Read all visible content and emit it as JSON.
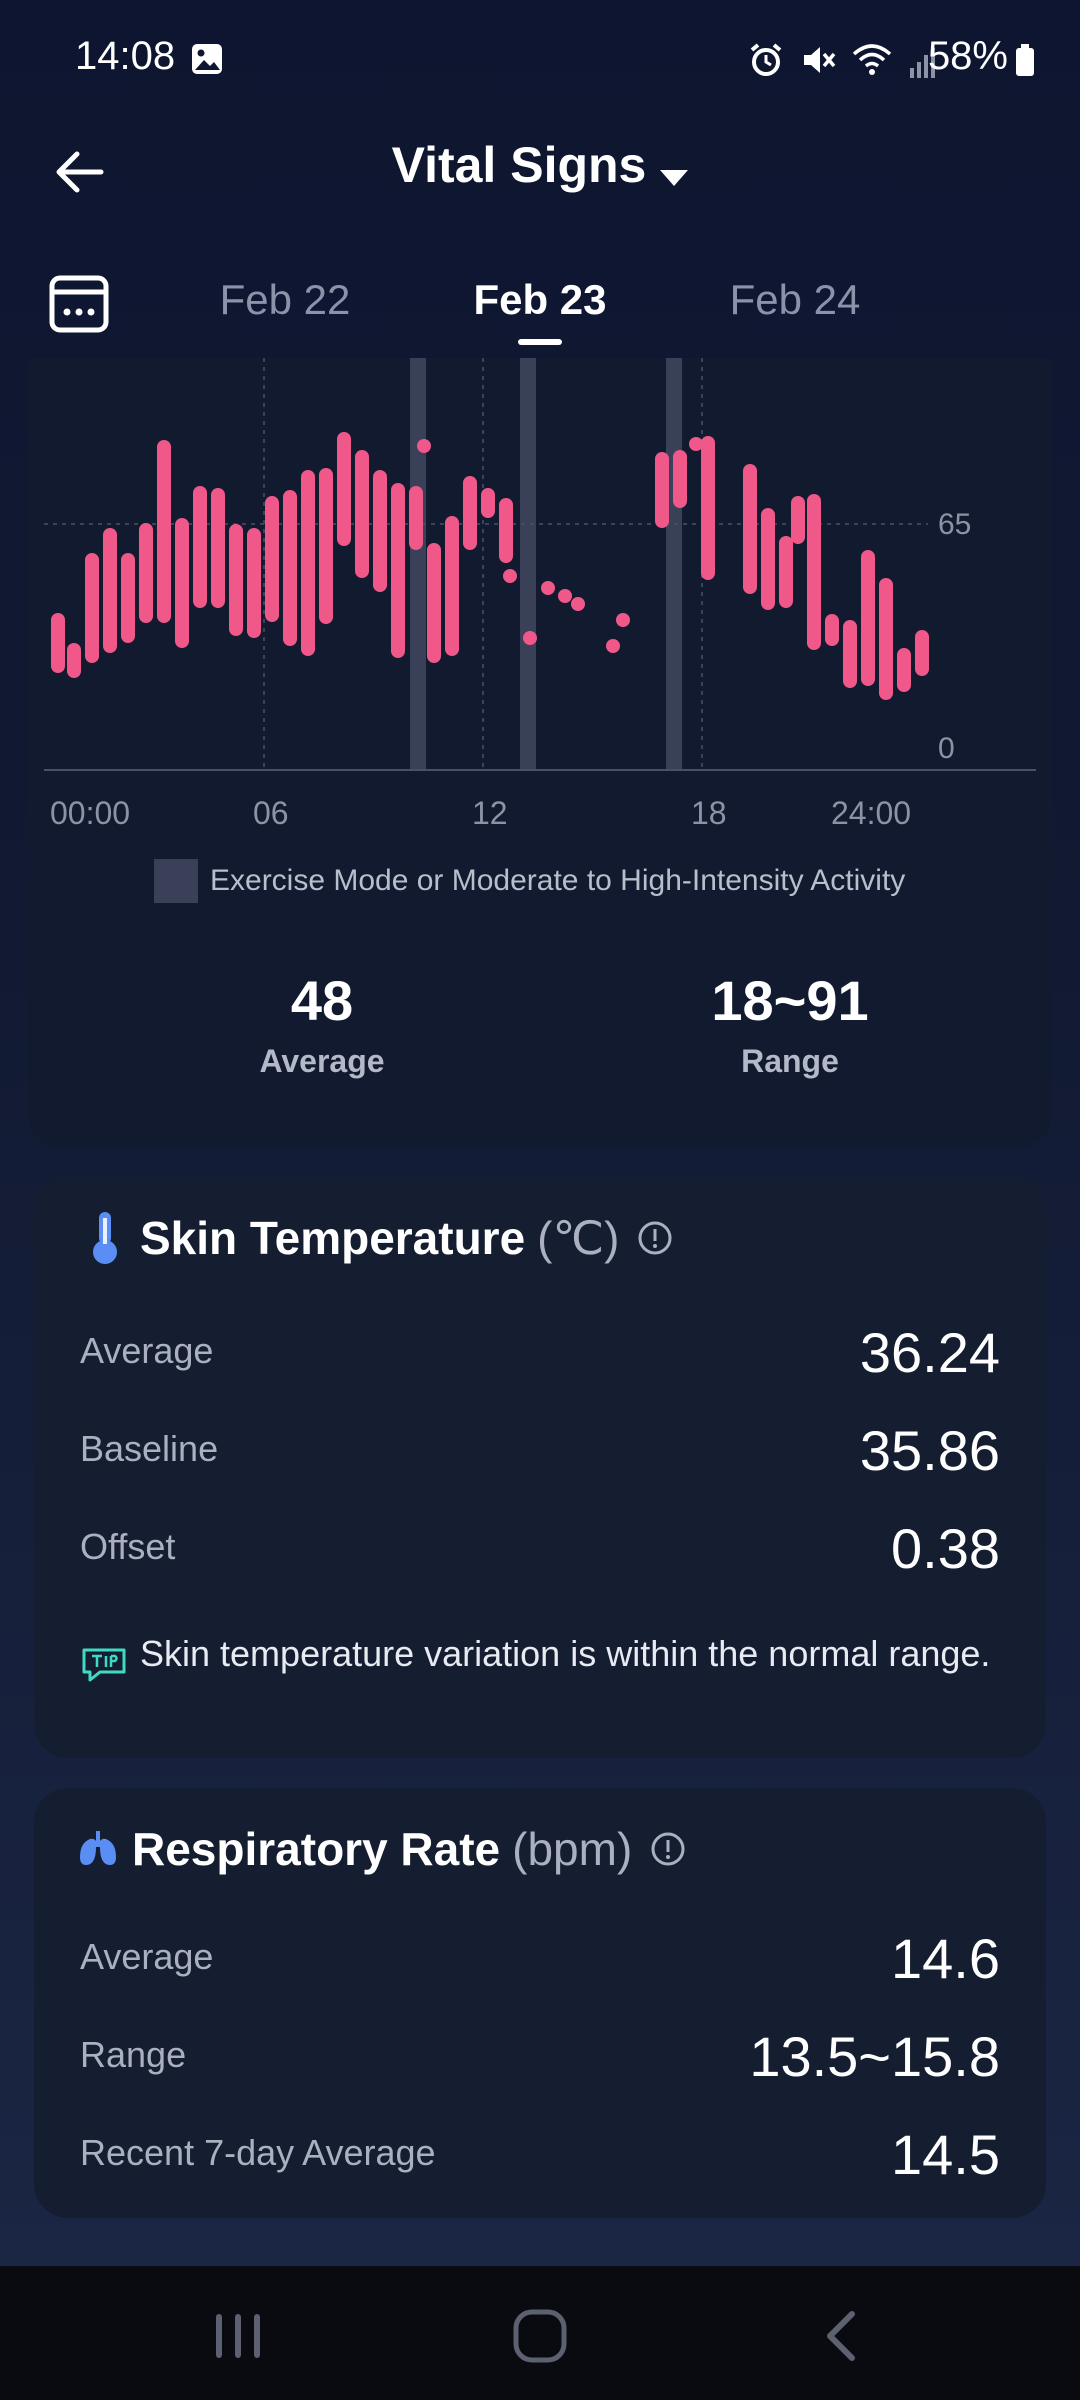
{
  "status_bar": {
    "time": "14:08",
    "battery": "58%"
  },
  "header": {
    "title": "Vital Signs"
  },
  "date_tabs": {
    "prev": "Feb 22",
    "current": "Feb 23",
    "next": "Feb 24"
  },
  "chart_data": {
    "type": "bar",
    "x_tick_labels": [
      "00:00",
      "06",
      "12",
      "18",
      "24:00"
    ],
    "y_tick_labels": [
      "65",
      "0"
    ],
    "legend": {
      "label": "Exercise Mode or Moderate to High-Intensity Activity",
      "color": "#3a4057"
    },
    "bar_color": "#f0588a"
  },
  "summary": {
    "average_value": "48",
    "average_label": "Average",
    "range_value": "18~91",
    "range_label": "Range"
  },
  "skin_temperature": {
    "title": "Skin Temperature",
    "unit": "(℃)",
    "rows": [
      {
        "label": "Average",
        "value": "36.24"
      },
      {
        "label": "Baseline",
        "value": "35.86"
      },
      {
        "label": "Offset",
        "value": "0.38"
      }
    ],
    "tip": "Skin temperature variation is within the normal range."
  },
  "respiratory_rate": {
    "title": "Respiratory Rate",
    "unit": "(bpm)",
    "rows": [
      {
        "label": "Average",
        "value": "14.6"
      },
      {
        "label": "Range",
        "value": "13.5~15.8"
      },
      {
        "label": "Recent 7-day Average",
        "value": "14.5"
      }
    ]
  }
}
